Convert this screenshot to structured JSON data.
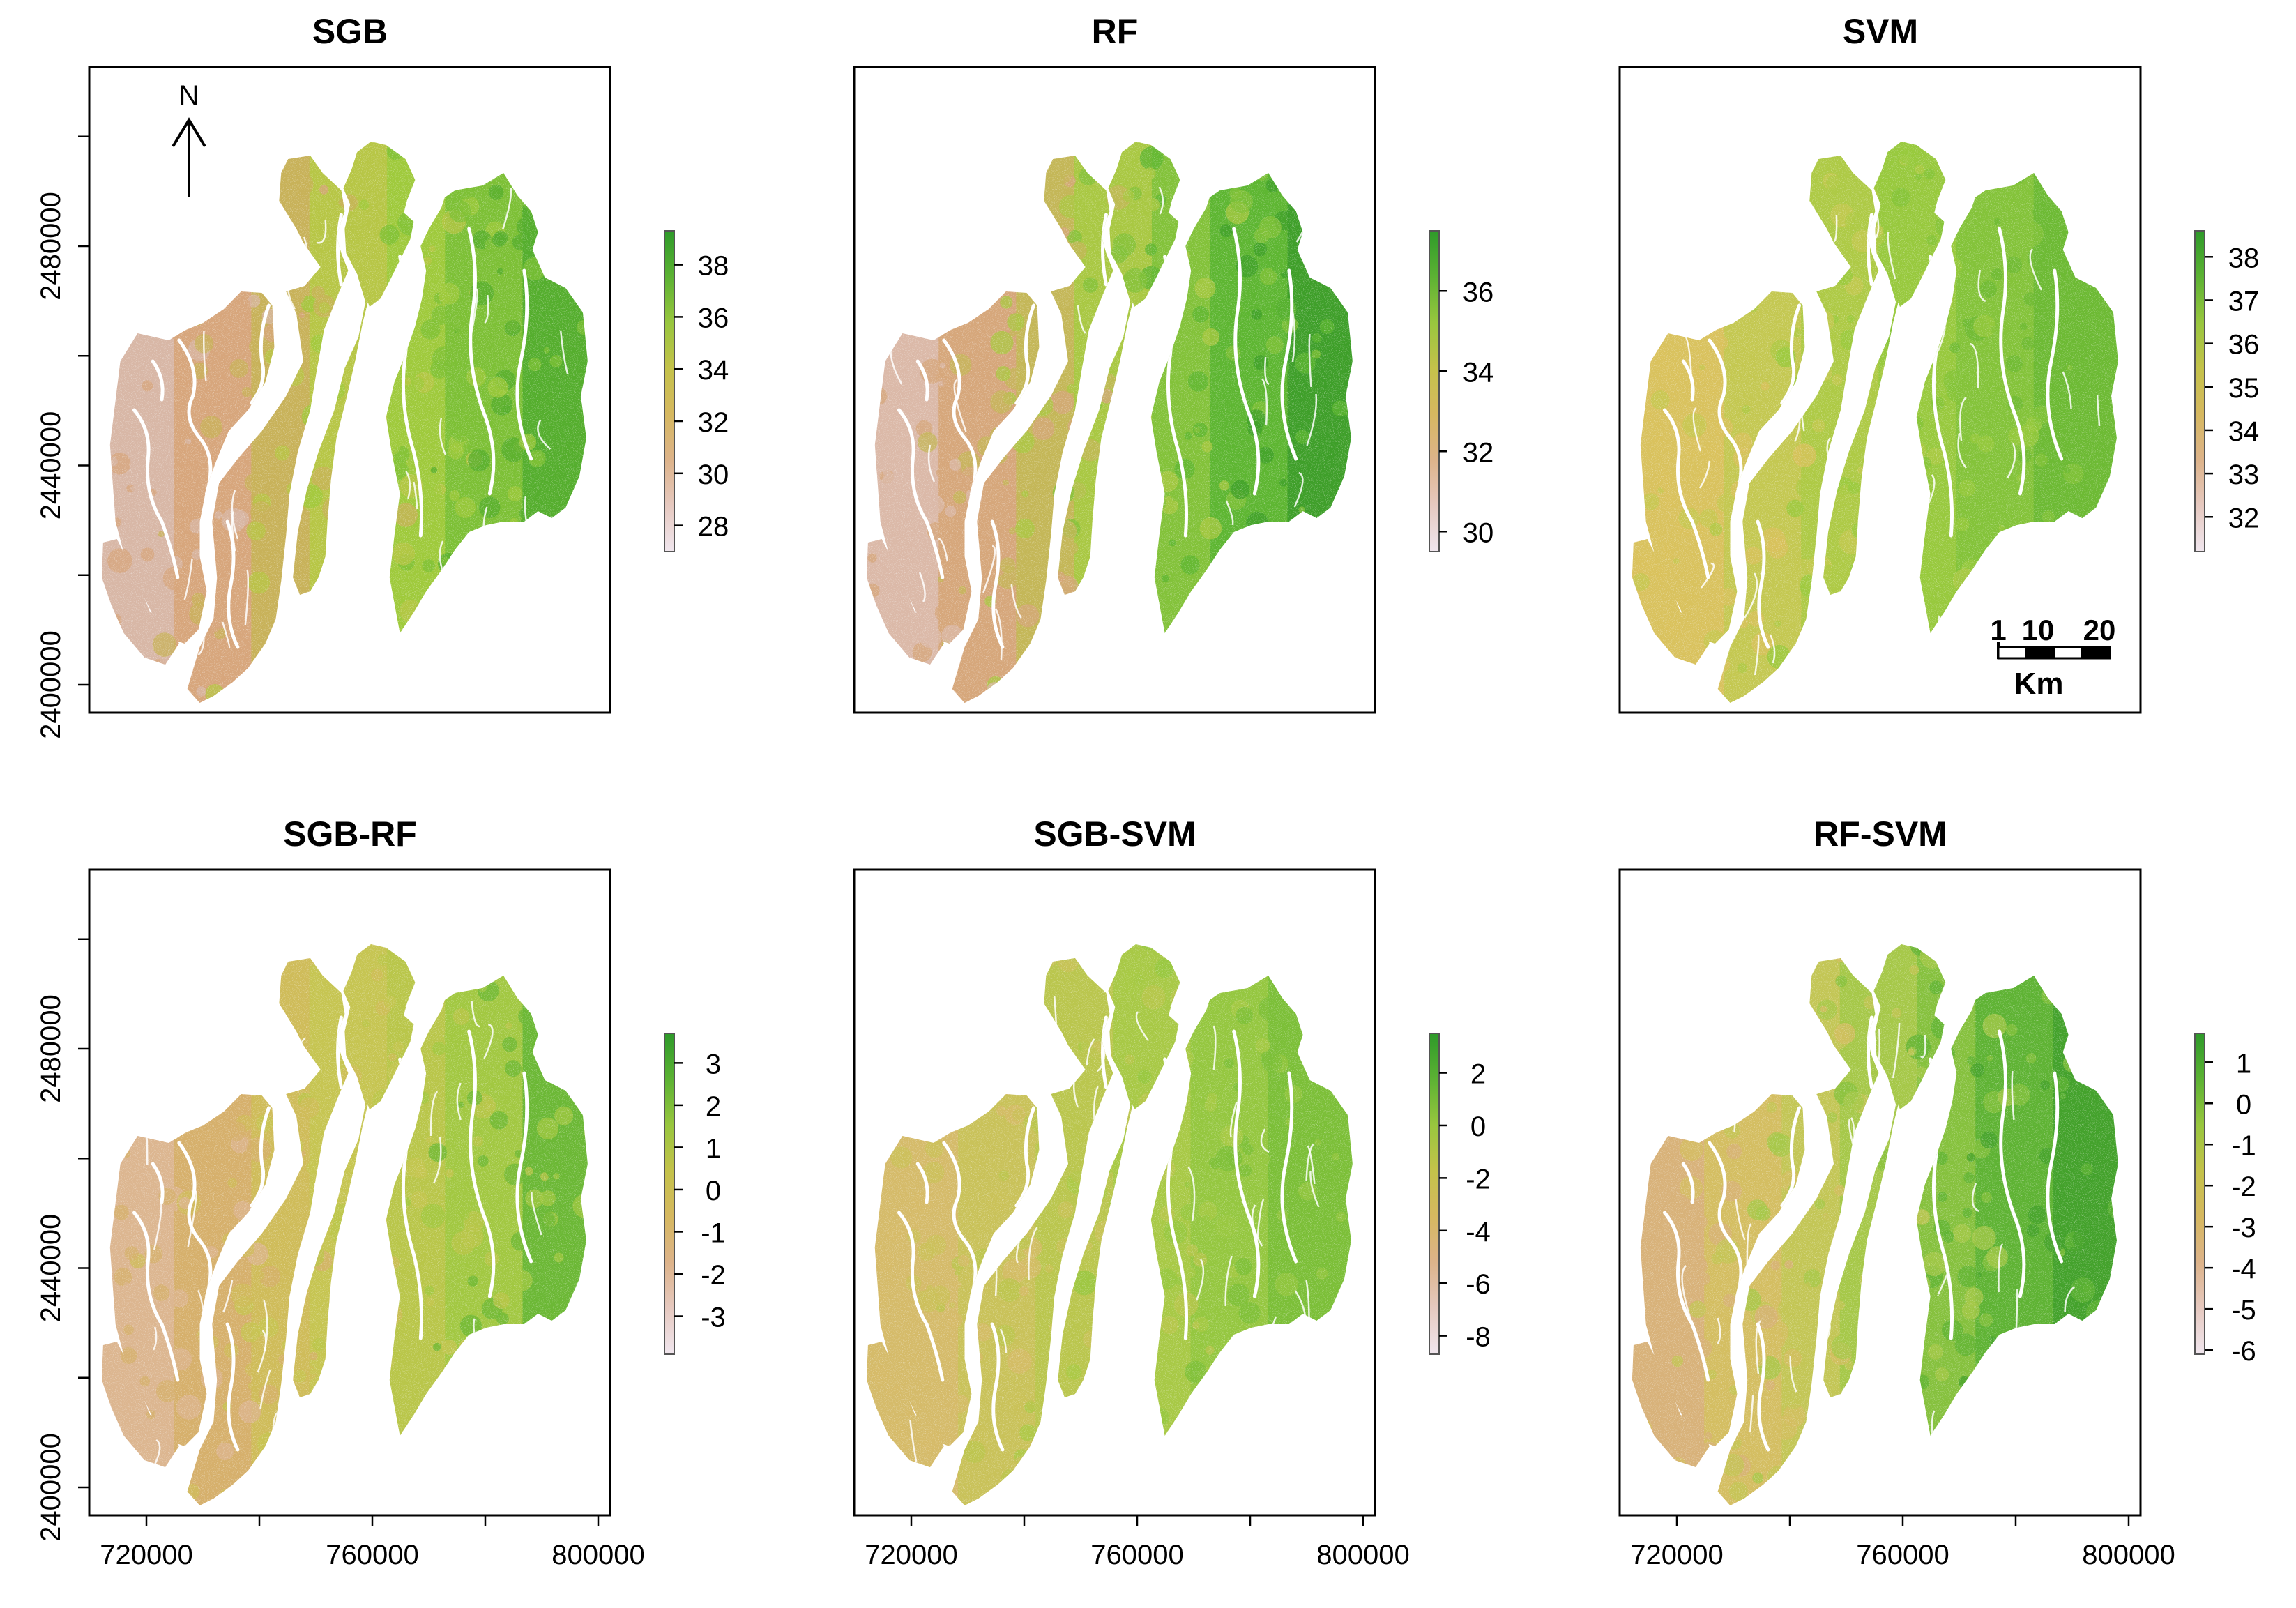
{
  "figure": {
    "north_label": "N",
    "x_ticks": [
      "720000",
      "760000",
      "800000"
    ],
    "y_ticks": [
      "2400000",
      "2440000",
      "2480000"
    ]
  },
  "scale_bar": {
    "labels": [
      "1",
      "10",
      "20"
    ],
    "unit": "Km"
  },
  "panels": [
    {
      "title": "SGB",
      "legend": {
        "ticks": [
          "38",
          "36",
          "34",
          "32",
          "30",
          "28"
        ],
        "min": 27,
        "max": 39.3
      },
      "map_palette": [
        "#d8b7a6",
        "#d7a67c",
        "#c8b25a",
        "#b7c646",
        "#9fca3c",
        "#7dc036",
        "#55ae2e"
      ]
    },
    {
      "title": "RF",
      "legend": {
        "ticks": [
          "36",
          "34",
          "32",
          "30"
        ],
        "min": 29.5,
        "max": 37.5
      },
      "map_palette": [
        "#dbb9a8",
        "#d6a77b",
        "#c4b758",
        "#a9c843",
        "#83c23a",
        "#5eb632",
        "#3f9f2a"
      ]
    },
    {
      "title": "SVM",
      "legend": {
        "ticks": [
          "38",
          "37",
          "36",
          "35",
          "34",
          "33",
          "32"
        ],
        "min": 31.2,
        "max": 38.6
      },
      "map_palette": [
        "#d9c25e",
        "#c4c852",
        "#aeca46",
        "#98c93e",
        "#84c33a",
        "#6dba34"
      ]
    },
    {
      "title": "SGB-RF",
      "legend": {
        "ticks": [
          "3",
          "2",
          "1",
          "0",
          "-1",
          "-2",
          "-3"
        ],
        "min": -3.9,
        "max": 3.7
      },
      "map_palette": [
        "#dcb690",
        "#d6b06c",
        "#cfbc5a",
        "#c6c552",
        "#b9c64a",
        "#a2c842",
        "#6cb836"
      ]
    },
    {
      "title": "SGB-SVM",
      "legend": {
        "ticks": [
          "2",
          "0",
          "-2",
          "-4",
          "-6",
          "-8"
        ],
        "min": -8.7,
        "max": 3.5
      },
      "map_palette": [
        "#d5bb6a",
        "#c9c25a",
        "#bac64e",
        "#a8c946",
        "#95c740",
        "#7cbf38"
      ]
    },
    {
      "title": "RF-SVM",
      "legend": {
        "ticks": [
          "1",
          "0",
          "-1",
          "-2",
          "-3",
          "-4",
          "-5",
          "-6"
        ],
        "min": -6.1,
        "max": 1.7
      },
      "map_palette": [
        "#d8b27a",
        "#d4be62",
        "#c3c656",
        "#a6c849",
        "#86c13e",
        "#5fb334",
        "#44a22c"
      ]
    }
  ]
}
